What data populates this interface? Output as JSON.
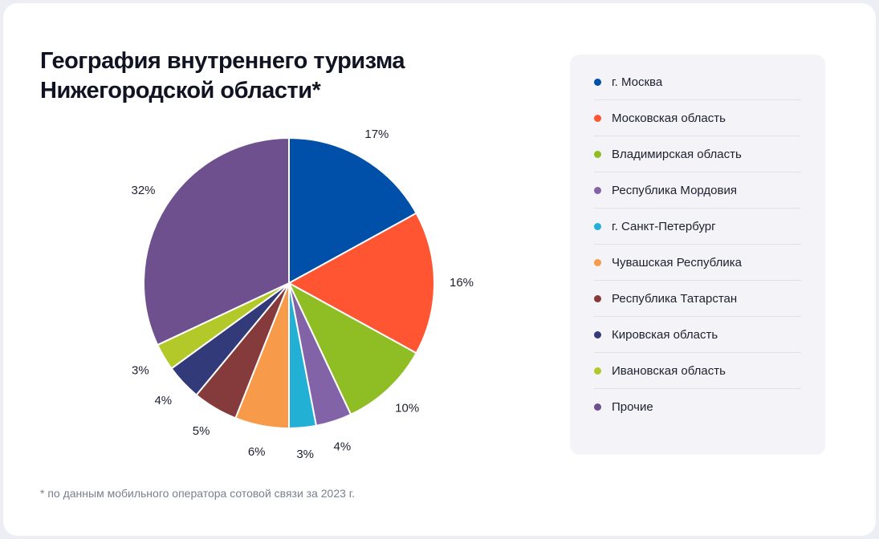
{
  "title": {
    "line1": "География внутреннего туризма",
    "line2": "Нижегородской области*"
  },
  "footnote": "* по данным мобильного оператора сотовой связи за 2023 г.",
  "chart_data": {
    "type": "pie",
    "title": "География внутреннего туризма Нижегородской области*",
    "unit": "%",
    "categories": [
      "г. Москва",
      "Московская область",
      "Владимирская область",
      "Республика Мордовия",
      "г. Санкт-Петербург",
      "Чувашская Республика",
      "Республика Татарстан",
      "Кировская область",
      "Ивановская область",
      "Прочие"
    ],
    "values": [
      17,
      16,
      10,
      4,
      3,
      6,
      5,
      4,
      3,
      32
    ],
    "colors": [
      "#0050aa",
      "#ff5533",
      "#8fbd24",
      "#8363a8",
      "#22b0d4",
      "#f79a4a",
      "#853b3b",
      "#333a7a",
      "#b3c92a",
      "#6f508f"
    ],
    "labels": [
      "17%",
      "16%",
      "10%",
      "4%",
      "3%",
      "6%",
      "5%",
      "4%",
      "3%",
      "32%"
    ],
    "legend_position": "right"
  }
}
